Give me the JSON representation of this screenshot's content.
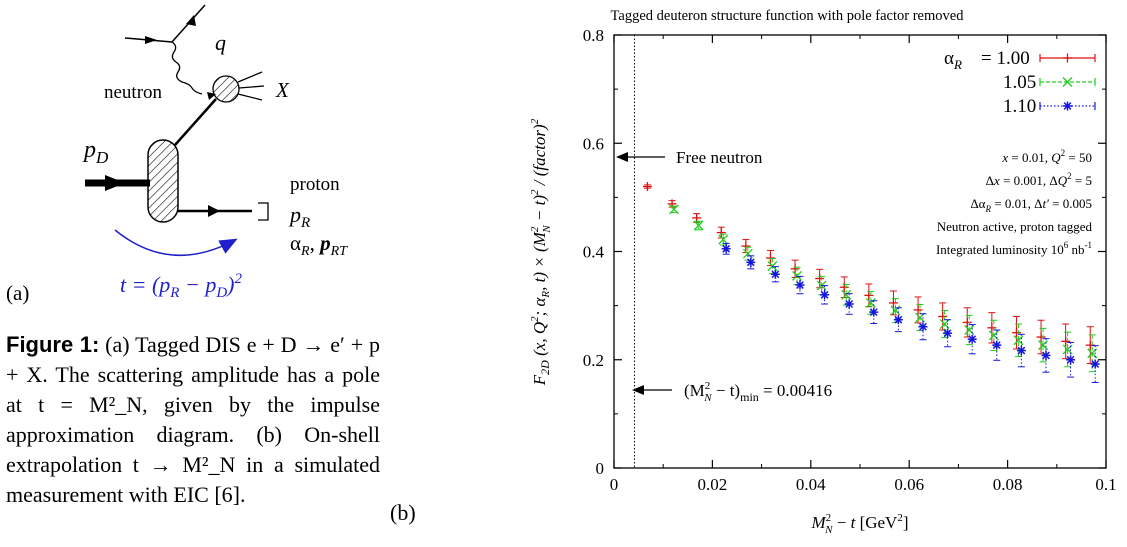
{
  "diagram": {
    "panel_label": "(a)",
    "q_label": "q",
    "neutron_label": "neutron",
    "x_label": "X",
    "pd_label": "p",
    "pd_sub": "D",
    "proton_label": "proton",
    "pr_label": "p",
    "pr_sub": "R",
    "alpha_label": "α",
    "alpha_sub": "R",
    "prt_label": "p",
    "prt_sub": "RT",
    "t_formula": "t = (p",
    "t_formula_sub1": "R",
    "t_formula_mid": " − p",
    "t_formula_sub2": "D",
    "t_formula_end": ")",
    "t_formula_sup": "2",
    "accent": "#1f1fcc"
  },
  "caption": {
    "figure_label": "Figure 1:",
    "text": "(a) Tagged DIS e + D → e′ + p + X. The scattering amplitude has a pole at t = M²_N, given by the impulse approximation diagram. (b) On-shell extrapolation t → M²_N in a simulated measurement with EIC [6]."
  },
  "panel_b_label": "(b)",
  "chart_data": {
    "type": "scatter",
    "title": "Tagged deuteron structure function with pole factor removed",
    "xlabel": "M²_N − t  [GeV²]",
    "ylabel": "F_2D (x, Q²; α_R, t) × (M²_N − t)² / (factor)²",
    "xlim": [
      0,
      0.1
    ],
    "ylim": [
      0,
      0.8
    ],
    "x_ticks": [
      "0",
      "0.02",
      "0.04",
      "0.06",
      "0.08",
      "0.1"
    ],
    "y_ticks": [
      "0",
      "0.2",
      "0.4",
      "0.6",
      "0.8"
    ],
    "legend_position": "top-right",
    "series": [
      {
        "name": "α_R = 1.00",
        "legend_text": "= 1.00",
        "color": "#e01010",
        "marker": "plus",
        "x": [
          0.0068,
          0.0118,
          0.0168,
          0.0218,
          0.0268,
          0.0318,
          0.0368,
          0.0418,
          0.0468,
          0.0518,
          0.0568,
          0.0618,
          0.0668,
          0.0718,
          0.0768,
          0.0818,
          0.0868,
          0.0918,
          0.0968
        ],
        "y": [
          0.52,
          0.488,
          0.462,
          0.435,
          0.41,
          0.388,
          0.368,
          0.35,
          0.334,
          0.319,
          0.305,
          0.292,
          0.28,
          0.269,
          0.259,
          0.25,
          0.242,
          0.234,
          0.227
        ],
        "err": [
          0.003,
          0.006,
          0.008,
          0.01,
          0.012,
          0.014,
          0.016,
          0.017,
          0.019,
          0.021,
          0.022,
          0.024,
          0.025,
          0.027,
          0.028,
          0.03,
          0.031,
          0.032,
          0.034
        ]
      },
      {
        "name": "1.05",
        "legend_text": "1.05",
        "color": "#22cc22",
        "marker": "cross",
        "x": [
          0.0122,
          0.0172,
          0.0222,
          0.0272,
          0.0322,
          0.0372,
          0.0422,
          0.0472,
          0.0522,
          0.0572,
          0.0622,
          0.0672,
          0.0722,
          0.0772,
          0.0822,
          0.0872,
          0.0922,
          0.0972
        ],
        "y": [
          0.478,
          0.448,
          0.422,
          0.396,
          0.373,
          0.355,
          0.337,
          0.32,
          0.305,
          0.291,
          0.278,
          0.266,
          0.255,
          0.245,
          0.236,
          0.227,
          0.219,
          0.212
        ],
        "err": [
          0.006,
          0.008,
          0.01,
          0.012,
          0.014,
          0.016,
          0.017,
          0.019,
          0.021,
          0.022,
          0.024,
          0.025,
          0.027,
          0.028,
          0.03,
          0.031,
          0.032,
          0.034
        ]
      },
      {
        "name": "1.10",
        "legend_text": "1.10",
        "color": "#1515e0",
        "marker": "star",
        "x": [
          0.0228,
          0.0278,
          0.0328,
          0.0378,
          0.0428,
          0.0478,
          0.0528,
          0.0578,
          0.0628,
          0.0678,
          0.0728,
          0.0778,
          0.0828,
          0.0878,
          0.0928,
          0.0978
        ],
        "y": [
          0.405,
          0.38,
          0.358,
          0.338,
          0.32,
          0.303,
          0.288,
          0.274,
          0.261,
          0.249,
          0.238,
          0.227,
          0.217,
          0.208,
          0.2,
          0.192
        ],
        "err": [
          0.01,
          0.012,
          0.014,
          0.016,
          0.017,
          0.019,
          0.021,
          0.022,
          0.024,
          0.025,
          0.027,
          0.028,
          0.03,
          0.031,
          0.032,
          0.034
        ]
      }
    ],
    "legend_alpha": "α",
    "legend_alpha_sub": "R",
    "free_neutron": {
      "label": "Free neutron",
      "y": 0.58
    },
    "min_line": {
      "x": 0.00416,
      "label": "(M²_N − t)_min = 0.00416",
      "label_prefix": "(M",
      "label_sup": "2",
      "label_sub": "N",
      "label_mid": " − t)",
      "label_min": "min",
      "label_val": " = 0.00416"
    },
    "annotations": [
      "x = 0.01,  Q² = 50",
      "Δx = 0.001,  ΔQ² = 5",
      "Δα_R = 0.01,   Δt′ = 0.005",
      "Neutron active, proton tagged",
      "Integrated luminosity 10⁶ nb⁻¹"
    ]
  }
}
